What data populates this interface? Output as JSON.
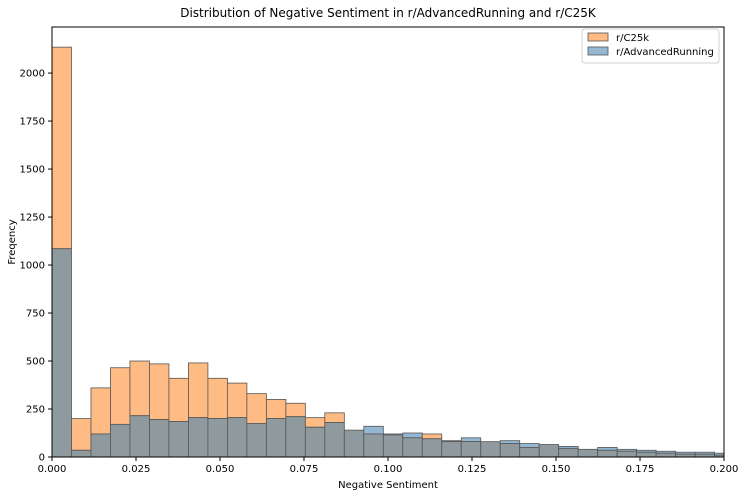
{
  "chart_data": {
    "type": "histogram",
    "title": "Distribution of Negative Sentiment in r/AdvancedRunning and r/C25K",
    "xlabel": "Negative Sentiment",
    "ylabel": "Freqency",
    "xlim": [
      0,
      0.2
    ],
    "ylim": [
      0,
      2240
    ],
    "x_ticks": [
      0.0,
      0.025,
      0.05,
      0.075,
      0.1,
      0.125,
      0.15,
      0.175,
      0.2
    ],
    "x_tick_labels": [
      "0.000",
      "0.025",
      "0.050",
      "0.075",
      "0.100",
      "0.125",
      "0.150",
      "0.175",
      "0.200"
    ],
    "y_ticks": [
      0,
      250,
      500,
      750,
      1000,
      1250,
      1500,
      1750,
      2000
    ],
    "y_tick_labels": [
      "0",
      "250",
      "500",
      "750",
      "1000",
      "1250",
      "1500",
      "1750",
      "2000"
    ],
    "grid": false,
    "legend_position": "top-right",
    "bin_edges": [
      0.0,
      0.0058,
      0.0116,
      0.0174,
      0.0232,
      0.029,
      0.0348,
      0.0406,
      0.0464,
      0.0522,
      0.058,
      0.0638,
      0.0696,
      0.0754,
      0.0812,
      0.087,
      0.0928,
      0.0986,
      0.1044,
      0.1102,
      0.116,
      0.1218,
      0.1276,
      0.1334,
      0.1392,
      0.145,
      0.1508,
      0.1566,
      0.1624,
      0.1682,
      0.174,
      0.1798,
      0.1856,
      0.1914,
      0.1972,
      0.203
    ],
    "series": [
      {
        "name": "r/C25k",
        "color": "#ffbb84",
        "values": [
          2135,
          200,
          360,
          465,
          500,
          485,
          410,
          490,
          410,
          385,
          330,
          300,
          280,
          205,
          230,
          140,
          120,
          115,
          100,
          120,
          85,
          80,
          80,
          70,
          50,
          65,
          45,
          40,
          35,
          30,
          25,
          20,
          15,
          15,
          10
        ]
      },
      {
        "name": "r/AdvancedRunning",
        "color": "#94b8d3",
        "values": [
          1085,
          35,
          120,
          170,
          215,
          195,
          185,
          205,
          200,
          205,
          175,
          200,
          210,
          155,
          180,
          140,
          160,
          120,
          125,
          95,
          80,
          100,
          80,
          85,
          70,
          65,
          55,
          40,
          50,
          40,
          35,
          30,
          25,
          25,
          20
        ]
      }
    ],
    "overlap_color": "#8f9a9e"
  }
}
